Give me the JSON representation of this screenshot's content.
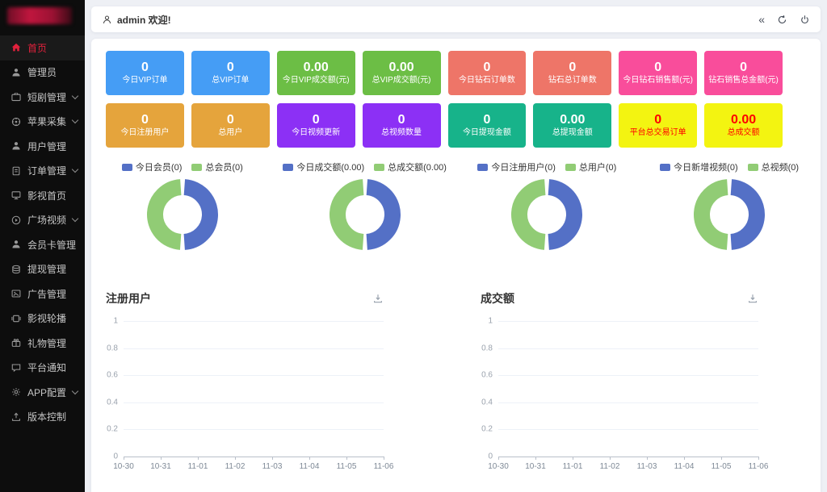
{
  "header": {
    "welcome": "admin 欢迎!",
    "icons": [
      {
        "name": "collapse-icon",
        "glyph": "«"
      },
      {
        "name": "refresh-icon"
      },
      {
        "name": "power-icon"
      }
    ]
  },
  "sidebar": {
    "bg": "#0d0d0d",
    "active_color": "#e0213c",
    "items": [
      {
        "id": "home",
        "label": "首页",
        "icon": "home-icon",
        "active": true,
        "chevron": false
      },
      {
        "id": "admin",
        "label": "管理员",
        "icon": "admin-user-icon",
        "active": false,
        "chevron": false
      },
      {
        "id": "shortplay",
        "label": "短剧管理",
        "icon": "short-video-icon",
        "active": false,
        "chevron": true
      },
      {
        "id": "apple",
        "label": "苹果采集",
        "icon": "collect-icon",
        "active": false,
        "chevron": true
      },
      {
        "id": "users",
        "label": "用户管理",
        "icon": "user-icon",
        "active": false,
        "chevron": false
      },
      {
        "id": "orders",
        "label": "订单管理",
        "icon": "order-icon",
        "active": false,
        "chevron": true
      },
      {
        "id": "moviehome",
        "label": "影视首页",
        "icon": "movie-home-icon",
        "active": false,
        "chevron": false
      },
      {
        "id": "plazavideo",
        "label": "广场视频",
        "icon": "play-circle-icon",
        "active": false,
        "chevron": true
      },
      {
        "id": "membercard",
        "label": "会员卡管理",
        "icon": "member-card-icon",
        "active": false,
        "chevron": false
      },
      {
        "id": "withdraw",
        "label": "提现管理",
        "icon": "withdraw-icon",
        "active": false,
        "chevron": false
      },
      {
        "id": "ads",
        "label": "广告管理",
        "icon": "ad-icon",
        "active": false,
        "chevron": false
      },
      {
        "id": "carousel",
        "label": "影视轮播",
        "icon": "carousel-icon",
        "active": false,
        "chevron": false
      },
      {
        "id": "gifts",
        "label": "礼物管理",
        "icon": "gift-icon",
        "active": false,
        "chevron": false
      },
      {
        "id": "notice",
        "label": "平台通知",
        "icon": "notice-icon",
        "active": false,
        "chevron": false
      },
      {
        "id": "appconfig",
        "label": "APP配置",
        "icon": "gear-icon",
        "active": false,
        "chevron": true
      },
      {
        "id": "version",
        "label": "版本控制",
        "icon": "version-icon",
        "active": false,
        "chevron": false
      }
    ]
  },
  "stats": {
    "cards": [
      {
        "value": "0",
        "label": "今日VIP订单",
        "bg": "#459df5",
        "fg": "#ffffff"
      },
      {
        "value": "0",
        "label": "总VIP订单",
        "bg": "#459df5",
        "fg": "#ffffff"
      },
      {
        "value": "0.00",
        "label": "今日VIP成交额(元)",
        "bg": "#6cbe45",
        "fg": "#ffffff"
      },
      {
        "value": "0.00",
        "label": "总VIP成交额(元)",
        "bg": "#6cbe45",
        "fg": "#ffffff"
      },
      {
        "value": "0",
        "label": "今日钻石订单数",
        "bg": "#ee7568",
        "fg": "#ffffff"
      },
      {
        "value": "0",
        "label": "钻石总订单数",
        "bg": "#ee7568",
        "fg": "#ffffff"
      },
      {
        "value": "0",
        "label": "今日钻石销售额(元)",
        "bg": "#f94d9b",
        "fg": "#ffffff"
      },
      {
        "value": "0",
        "label": "钻石销售总金额(元)",
        "bg": "#f94d9b",
        "fg": "#ffffff"
      },
      {
        "value": "0",
        "label": "今日注册用户",
        "bg": "#e5a43c",
        "fg": "#ffffff"
      },
      {
        "value": "0",
        "label": "总用户",
        "bg": "#e5a43c",
        "fg": "#ffffff"
      },
      {
        "value": "0",
        "label": "今日视频更新",
        "bg": "#8c30f5",
        "fg": "#ffffff"
      },
      {
        "value": "0",
        "label": "总视频数量",
        "bg": "#8c30f5",
        "fg": "#ffffff"
      },
      {
        "value": "0",
        "label": "今日提现金额",
        "bg": "#17b38a",
        "fg": "#ffffff"
      },
      {
        "value": "0.00",
        "label": "总提现金额",
        "bg": "#17b38a",
        "fg": "#ffffff"
      },
      {
        "value": "0",
        "label": "平台总交易订单",
        "bg": "#f3f411",
        "fg": "#fe0000"
      },
      {
        "value": "0.00",
        "label": "总成交额",
        "bg": "#f3f411",
        "fg": "#fe0000"
      }
    ]
  },
  "donuts": [
    {
      "legend": [
        {
          "label": "今日会员(0)",
          "color": "#5470c6"
        },
        {
          "label": "总会员(0)",
          "color": "#91cc75"
        }
      ]
    },
    {
      "legend": [
        {
          "label": "今日成交额(0.00)",
          "color": "#5470c6"
        },
        {
          "label": "总成交额(0.00)",
          "color": "#91cc75"
        }
      ]
    },
    {
      "legend": [
        {
          "label": "今日注册用户(0)",
          "color": "#5470c6"
        },
        {
          "label": "总用户(0)",
          "color": "#91cc75"
        }
      ]
    },
    {
      "legend": [
        {
          "label": "今日新增视频(0)",
          "color": "#5470c6"
        },
        {
          "label": "总视频(0)",
          "color": "#91cc75"
        }
      ]
    }
  ],
  "charts": [
    {
      "title": "注册用户",
      "y_ticks": [
        "1",
        "0.8",
        "0.6",
        "0.4",
        "0.2",
        "0"
      ],
      "x_labels": [
        "10-30",
        "10-31",
        "11-01",
        "11-02",
        "11-03",
        "11-04",
        "11-05",
        "11-06"
      ]
    },
    {
      "title": "成交额",
      "y_ticks": [
        "1",
        "0.8",
        "0.6",
        "0.4",
        "0.2",
        "0"
      ],
      "x_labels": [
        "10-30",
        "10-31",
        "11-01",
        "11-02",
        "11-03",
        "11-04",
        "11-05",
        "11-06"
      ]
    }
  ],
  "chart_data": [
    {
      "type": "pie",
      "title": "会员统计",
      "series": [
        {
          "name": "今日会员",
          "value": 0
        },
        {
          "name": "总会员",
          "value": 0
        }
      ],
      "colors": [
        "#5470c6",
        "#91cc75"
      ],
      "legend_position": "top",
      "note": "donut ring drawn as two equal halves, blue right / green left"
    },
    {
      "type": "pie",
      "title": "成交额统计",
      "series": [
        {
          "name": "今日成交额",
          "value": 0.0
        },
        {
          "name": "总成交额",
          "value": 0.0
        }
      ],
      "colors": [
        "#5470c6",
        "#91cc75"
      ],
      "legend_position": "top"
    },
    {
      "type": "pie",
      "title": "注册用户统计",
      "series": [
        {
          "name": "今日注册用户",
          "value": 0
        },
        {
          "name": "总用户",
          "value": 0
        }
      ],
      "colors": [
        "#5470c6",
        "#91cc75"
      ],
      "legend_position": "top"
    },
    {
      "type": "pie",
      "title": "视频统计",
      "series": [
        {
          "name": "今日新增视频",
          "value": 0
        },
        {
          "name": "总视频",
          "value": 0
        }
      ],
      "colors": [
        "#5470c6",
        "#91cc75"
      ],
      "legend_position": "top"
    },
    {
      "type": "line",
      "title": "注册用户",
      "x": [
        "10-30",
        "10-31",
        "11-01",
        "11-02",
        "11-03",
        "11-04",
        "11-05",
        "11-06"
      ],
      "values": [
        0,
        0,
        0,
        0,
        0,
        0,
        0,
        0
      ],
      "ylim": [
        0,
        1
      ],
      "yticks": [
        0,
        0.2,
        0.4,
        0.6,
        0.8,
        1
      ],
      "grid": true,
      "series_drawn": false
    },
    {
      "type": "line",
      "title": "成交额",
      "x": [
        "10-30",
        "10-31",
        "11-01",
        "11-02",
        "11-03",
        "11-04",
        "11-05",
        "11-06"
      ],
      "values": [
        0,
        0,
        0,
        0,
        0,
        0,
        0,
        0
      ],
      "ylim": [
        0,
        1
      ],
      "yticks": [
        0,
        0.2,
        0.4,
        0.6,
        0.8,
        1
      ],
      "grid": true,
      "series_drawn": false
    }
  ]
}
